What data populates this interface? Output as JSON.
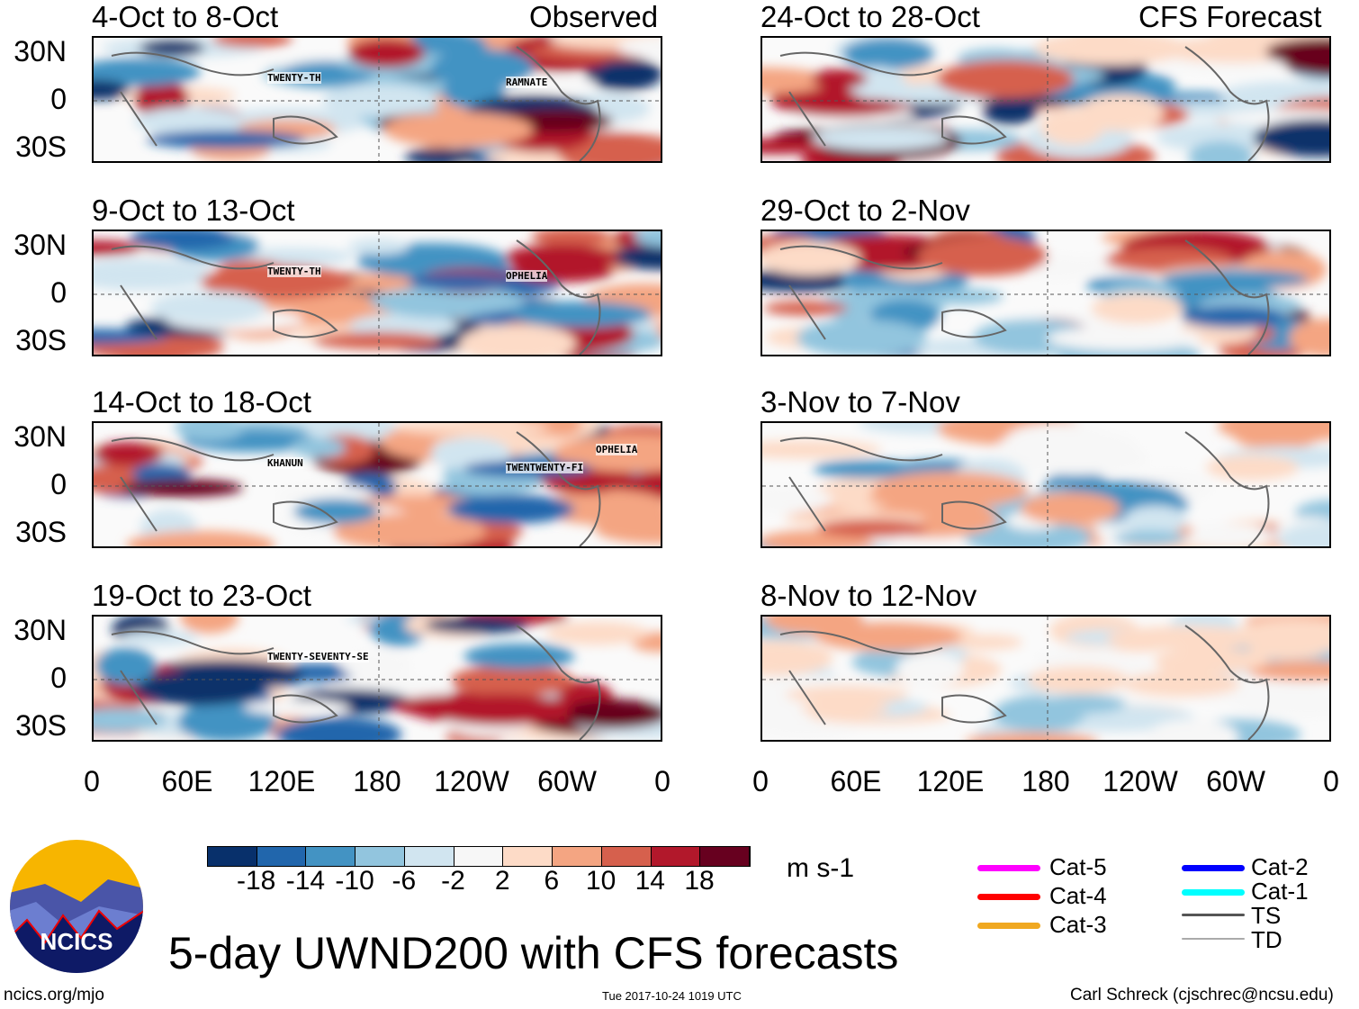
{
  "left_header": "Observed",
  "right_header": "CFS Forecast",
  "panels_left": [
    {
      "title": "4-Oct to 8-Oct",
      "storms": [
        "TWENTY-TH",
        "RAMNATE"
      ]
    },
    {
      "title": "9-Oct to 13-Oct",
      "storms": [
        "TWENTY-TH",
        "OPHELIA"
      ]
    },
    {
      "title": "14-Oct to 18-Oct",
      "storms": [
        "KHANUN",
        "TWENTWENTY-FI",
        "OPHELIA"
      ]
    },
    {
      "title": "19-Oct to 23-Oct",
      "storms": [
        "TWENTY-SEVENTY-SE"
      ]
    }
  ],
  "panels_right": [
    {
      "title": "24-Oct to 28-Oct"
    },
    {
      "title": "29-Oct to 2-Nov"
    },
    {
      "title": "3-Nov to 7-Nov"
    },
    {
      "title": "8-Nov to 12-Nov"
    }
  ],
  "lat_labels": [
    "30N",
    "0",
    "30S"
  ],
  "lon_labels": [
    "0",
    "60E",
    "120E",
    "180",
    "120W",
    "60W",
    "0"
  ],
  "colorbar": {
    "colors": [
      "#08306b",
      "#2166ac",
      "#4393c3",
      "#92c5de",
      "#d1e5f0",
      "#f7f7f7",
      "#fddbc7",
      "#f4a582",
      "#d6604d",
      "#b2182b",
      "#67001f"
    ],
    "labels": [
      "-18",
      "-14",
      "-10",
      "-6",
      "-2",
      "2",
      "6",
      "10",
      "14",
      "18"
    ],
    "units": "m s-1"
  },
  "legend": [
    {
      "label": "Cat-5",
      "color": "#ff00ff"
    },
    {
      "label": "Cat-4",
      "color": "#ff0000"
    },
    {
      "label": "Cat-3",
      "color": "#f0a820"
    },
    {
      "label": "Cat-2",
      "color": "#0000ff"
    },
    {
      "label": "Cat-1",
      "color": "#00ffff"
    },
    {
      "label": "TS",
      "color": "#555555"
    },
    {
      "label": "TD",
      "color": "#aaaaaa"
    }
  ],
  "logo_text": "NCICS",
  "main_title": "5-day UWND200 with CFS forecasts",
  "footer": {
    "url": "ncics.org/mjo",
    "timestamp": "Tue 2017-10-24 1019 UTC",
    "author": "Carl Schreck (cjschrec@ncsu.edu)"
  }
}
